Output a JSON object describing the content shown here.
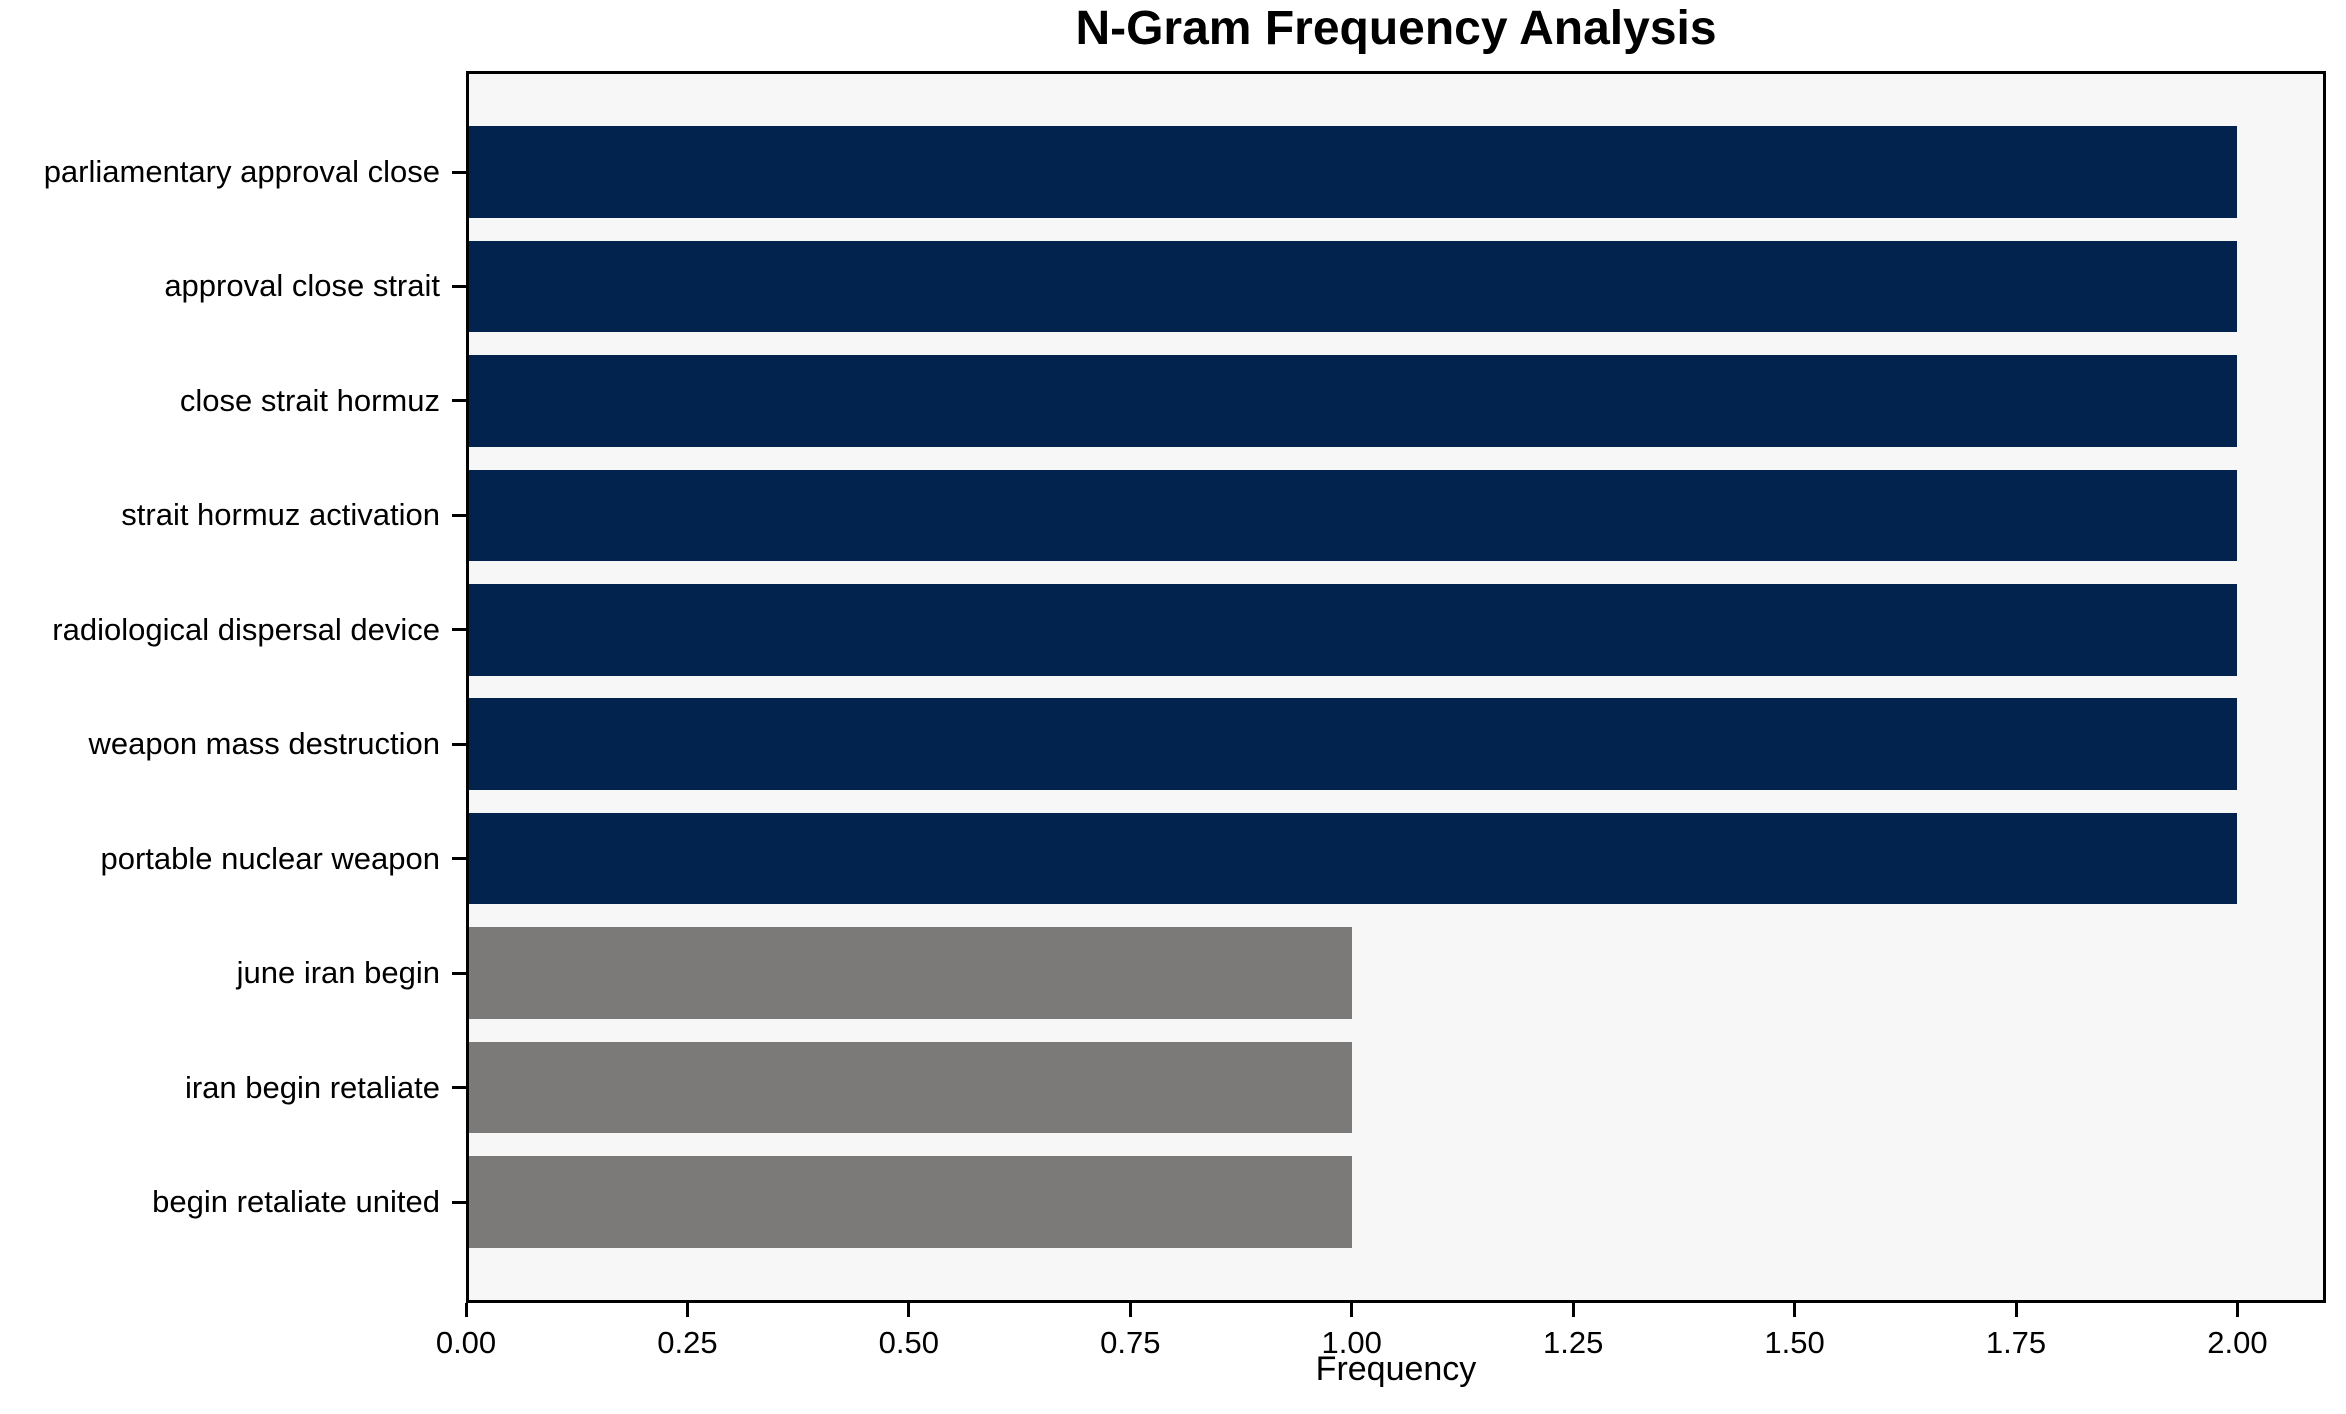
{
  "chart_data": {
    "type": "bar",
    "orientation": "horizontal",
    "title": "N-Gram Frequency Analysis",
    "xlabel": "Frequency",
    "ylabel": "",
    "categories": [
      "parliamentary approval close",
      "approval close strait",
      "close strait hormuz",
      "strait hormuz activation",
      "radiological dispersal device",
      "weapon mass destruction",
      "portable nuclear weapon",
      "june iran begin",
      "iran begin retaliate",
      "begin retaliate united"
    ],
    "values": [
      2,
      2,
      2,
      2,
      2,
      2,
      2,
      1,
      1,
      1
    ],
    "bar_colors": [
      "#01234e",
      "#01234e",
      "#01234e",
      "#01234e",
      "#01234e",
      "#01234e",
      "#01234e",
      "#7b7a78",
      "#7b7a78",
      "#7b7a78"
    ],
    "xlim": [
      0,
      2.1
    ],
    "xticks": [
      {
        "value": 0.0,
        "label": "0.00"
      },
      {
        "value": 0.25,
        "label": "0.25"
      },
      {
        "value": 0.5,
        "label": "0.50"
      },
      {
        "value": 0.75,
        "label": "0.75"
      },
      {
        "value": 1.0,
        "label": "1.00"
      },
      {
        "value": 1.25,
        "label": "1.25"
      },
      {
        "value": 1.5,
        "label": "1.50"
      },
      {
        "value": 1.75,
        "label": "1.75"
      },
      {
        "value": 2.0,
        "label": "2.00"
      }
    ],
    "grid": false,
    "legend_position": "none",
    "colors": {
      "primary_bar": "#01234e",
      "secondary_bar": "#7b7a78",
      "plot_background": "#f7f7f8",
      "figure_background": "#ffffff",
      "axis_line": "#000000",
      "text": "#000000"
    }
  }
}
